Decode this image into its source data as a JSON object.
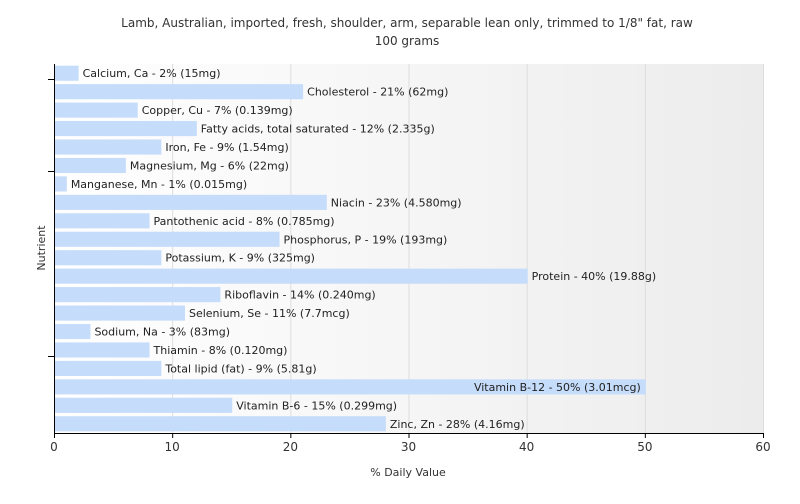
{
  "chart_data": {
    "type": "bar",
    "orientation": "horizontal",
    "title": "Lamb, Australian, imported, fresh, shoulder, arm, separable lean only, trimmed to 1/8\" fat, raw",
    "subtitle": "100 grams",
    "xlabel": "% Daily Value",
    "ylabel": "Nutrient",
    "xlim": [
      0,
      60
    ],
    "xticks": [
      0,
      10,
      20,
      30,
      40,
      50,
      60
    ],
    "grid": true,
    "bar_color": "#c6dcfb",
    "categories": [
      "Calcium, Ca",
      "Cholesterol",
      "Copper, Cu",
      "Fatty acids, total saturated",
      "Iron, Fe",
      "Magnesium, Mg",
      "Manganese, Mn",
      "Niacin",
      "Pantothenic acid",
      "Phosphorus, P",
      "Potassium, K",
      "Protein",
      "Riboflavin",
      "Selenium, Se",
      "Sodium, Na",
      "Thiamin",
      "Total lipid (fat)",
      "Vitamin B-12",
      "Vitamin B-6",
      "Zinc, Zn"
    ],
    "values": [
      2,
      21,
      7,
      12,
      9,
      6,
      1,
      23,
      8,
      19,
      9,
      40,
      14,
      11,
      3,
      8,
      9,
      50,
      15,
      28
    ],
    "labels": [
      "Calcium, Ca - 2% (15mg)",
      "Cholesterol - 21% (62mg)",
      "Copper, Cu - 7% (0.139mg)",
      "Fatty acids, total saturated - 12% (2.335g)",
      "Iron, Fe - 9% (1.54mg)",
      "Magnesium, Mg - 6% (22mg)",
      "Manganese, Mn - 1% (0.015mg)",
      "Niacin - 23% (4.580mg)",
      "Pantothenic acid - 8% (0.785mg)",
      "Phosphorus, P - 19% (193mg)",
      "Potassium, K - 9% (325mg)",
      "Protein - 40% (19.88g)",
      "Riboflavin - 14% (0.240mg)",
      "Selenium, Se - 11% (7.7mcg)",
      "Sodium, Na - 3% (83mg)",
      "Thiamin - 8% (0.120mg)",
      "Total lipid (fat) - 9% (5.81g)",
      "Vitamin B-12 - 50% (3.01mcg)",
      "Vitamin B-6 - 15% (0.299mg)",
      "Zinc, Zn - 28% (4.16mg)"
    ]
  }
}
